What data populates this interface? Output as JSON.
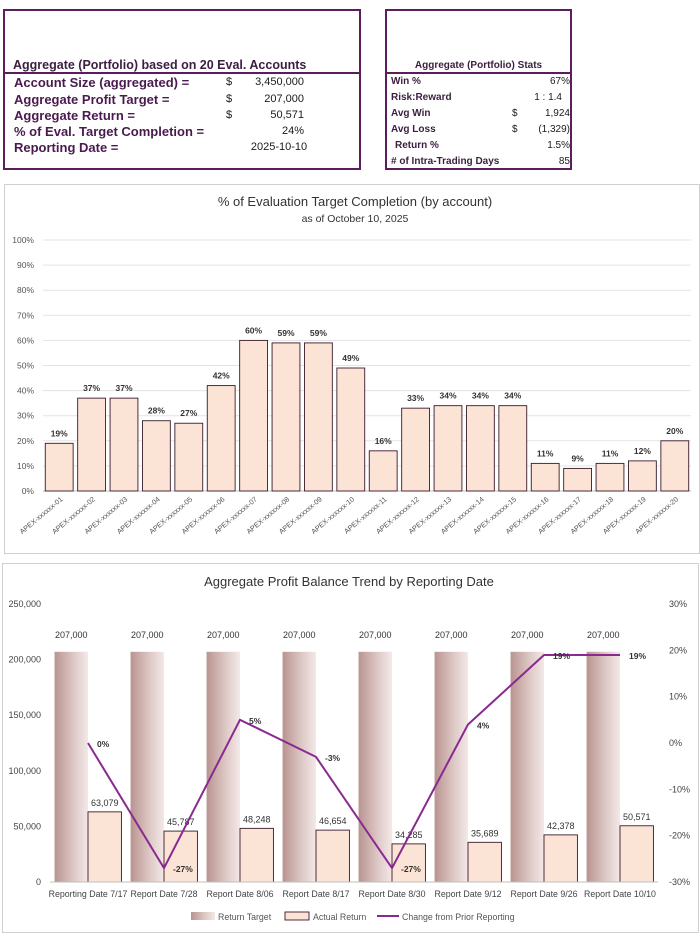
{
  "summary": {
    "title": "Aggregate (Portfolio) based on 20 Eval. Accounts",
    "rows": [
      {
        "label": "Account Size (aggregated) =",
        "currency": "$",
        "value": "3,450,000"
      },
      {
        "label": "Aggregate Profit Target =",
        "currency": "$",
        "value": "207,000"
      },
      {
        "label": "Aggregate Return =",
        "currency": "$",
        "value": "50,571"
      },
      {
        "label": "% of Eval. Target Completion =",
        "currency": "",
        "value": "24%"
      },
      {
        "label": "Reporting Date =",
        "currency": "",
        "value": "2025-10-10"
      }
    ]
  },
  "stats": {
    "title": "Aggregate (Portfolio) Stats",
    "rows": [
      {
        "label": "Win %",
        "currency": "",
        "value": "67%"
      },
      {
        "label": "Risk:Reward",
        "currency": "",
        "value": "1 : 1.4"
      },
      {
        "label": "Avg Win",
        "currency": "$",
        "value": "1,924"
      },
      {
        "label": "Avg Loss",
        "currency": "$",
        "value": "(1,329)"
      },
      {
        "label": "Return %",
        "currency": "",
        "value": "1.5%"
      },
      {
        "label": "# of Intra-Trading Days",
        "currency": "",
        "value": "85"
      }
    ]
  },
  "colors": {
    "accent": "#5b1d5d",
    "bar_fill": "#fbe3d6",
    "bar_stroke": "#3a1a2a",
    "target_bar": "#c9a9a6",
    "line": "#8a2a8f"
  },
  "chart_data": [
    {
      "type": "bar",
      "title": "% of Evaluation Target Completion (by account)",
      "subtitle": "as of October 10, 2025",
      "categories": [
        "APEX-xxxxxx-01",
        "APEX-xxxxxx-02",
        "APEX-xxxxxx-03",
        "APEX-xxxxxx-04",
        "APEX-xxxxxx-05",
        "APEX-xxxxxx-06",
        "APEX-xxxxxx-07",
        "APEX-xxxxxx-08",
        "APEX-xxxxxx-09",
        "APEX-xxxxxx-10",
        "APEX-xxxxxx-11",
        "APEX-xxxxxx-12",
        "APEX-xxxxxx-13",
        "APEX-xxxxxx-14",
        "APEX-xxxxxx-15",
        "APEX-xxxxxx-16",
        "APEX-xxxxxx-17",
        "APEX-xxxxxx-18",
        "APEX-xxxxxx-19",
        "APEX-xxxxxx-20"
      ],
      "values": [
        19,
        37,
        37,
        28,
        27,
        42,
        60,
        59,
        59,
        49,
        16,
        33,
        34,
        34,
        34,
        11,
        9,
        11,
        12,
        20
      ],
      "labels": [
        "19%",
        "37%",
        "37%",
        "28%",
        "27%",
        "42%",
        "60%",
        "59%",
        "59%",
        "49%",
        "16%",
        "33%",
        "34%",
        "34%",
        "34%",
        "11%",
        "9%",
        "11%",
        "12%",
        "20%"
      ],
      "ylim": [
        0,
        100
      ],
      "yticks": [
        "0%",
        "10%",
        "20%",
        "30%",
        "40%",
        "50%",
        "60%",
        "70%",
        "80%",
        "90%",
        "100%"
      ],
      "xlabel": "",
      "ylabel": "",
      "grid": true
    },
    {
      "type": "bar",
      "title": "Aggregate Profit Balance Trend by Reporting Date",
      "categories": [
        "Reporting Date 7/17",
        "Report Date 7/28",
        "Report Date 8/06",
        "Report Date 8/17",
        "Report Date 8/30",
        "Report Date 9/12",
        "Report Date 9/26",
        "Report Date 10/10"
      ],
      "series": [
        {
          "name": "Return Target",
          "values": [
            207000,
            207000,
            207000,
            207000,
            207000,
            207000,
            207000,
            207000
          ],
          "labels": [
            "207,000",
            "207,000",
            "207,000",
            "207,000",
            "207,000",
            "207,000",
            "207,000",
            "207,000"
          ]
        },
        {
          "name": "Actual Return",
          "values": [
            63079,
            45787,
            48248,
            46654,
            34285,
            35689,
            42378,
            50571
          ],
          "labels": [
            "63,079",
            "45,787",
            "48,248",
            "46,654",
            "34,285",
            "35,689",
            "42,378",
            "50,571"
          ]
        },
        {
          "name": "Change from Prior Reporting",
          "axis": "secondary",
          "type": "line",
          "values": [
            0,
            -27,
            5,
            -3,
            -27,
            4,
            19,
            19
          ],
          "labels": [
            "0%",
            "-27%",
            "5%",
            "-3%",
            "-27%",
            "4%",
            "19%",
            "19%"
          ]
        }
      ],
      "ylim": [
        0,
        250000
      ],
      "yticks": [
        "0",
        "50,000",
        "100,000",
        "150,000",
        "200,000",
        "250,000"
      ],
      "y2lim": [
        -30,
        30
      ],
      "y2ticks": [
        "-30%",
        "-20%",
        "-10%",
        "0%",
        "10%",
        "20%",
        "30%"
      ],
      "legend": "bottom",
      "grid": false
    }
  ]
}
